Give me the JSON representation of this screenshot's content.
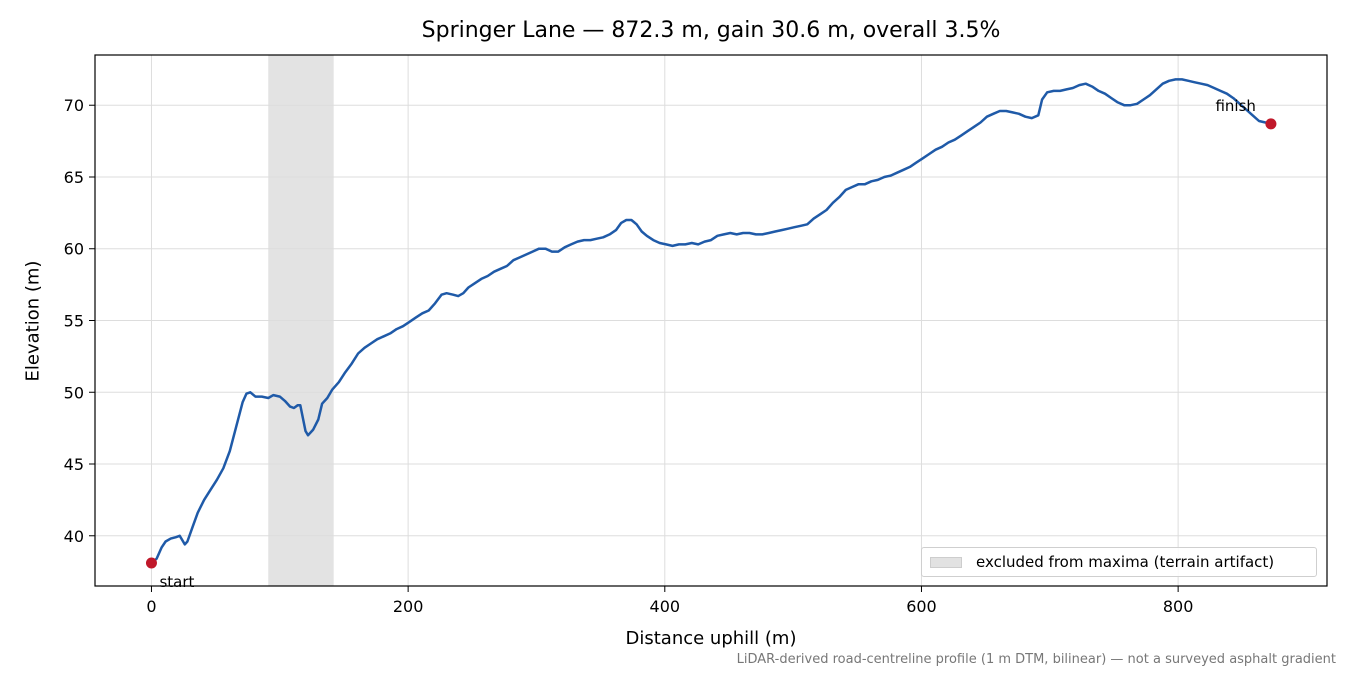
{
  "chart_data": {
    "type": "line",
    "title": "Springer Lane — 872.3 m, gain 30.6 m, overall 3.5%",
    "xlabel": "Distance uphill (m)",
    "ylabel": "Elevation (m)",
    "footnote": "LiDAR-derived road-centreline profile (1 m DTM, bilinear) — not a surveyed asphalt gradient",
    "xlim": [
      -44,
      916
    ],
    "ylim": [
      36.5,
      73.5
    ],
    "xticks": [
      0,
      200,
      400,
      600,
      800
    ],
    "yticks": [
      40,
      45,
      50,
      55,
      60,
      65,
      70
    ],
    "grid": true,
    "legend": {
      "placement": "lower-right",
      "label": "excluded from maxima (terrain artifact)"
    },
    "excluded_region": [
      91,
      142
    ],
    "series": [
      {
        "color": "#1f5aa8",
        "points": [
          [
            0,
            38.1
          ],
          [
            4,
            38.4
          ],
          [
            8,
            39.2
          ],
          [
            11,
            39.6
          ],
          [
            15,
            39.8
          ],
          [
            19,
            39.9
          ],
          [
            22,
            40.0
          ],
          [
            24,
            39.7
          ],
          [
            26,
            39.4
          ],
          [
            28,
            39.6
          ],
          [
            32,
            40.6
          ],
          [
            36,
            41.6
          ],
          [
            41,
            42.5
          ],
          [
            46,
            43.2
          ],
          [
            51,
            43.9
          ],
          [
            56,
            44.7
          ],
          [
            61,
            45.9
          ],
          [
            66,
            47.6
          ],
          [
            71,
            49.3
          ],
          [
            74,
            49.9
          ],
          [
            77,
            50.0
          ],
          [
            81,
            49.7
          ],
          [
            86,
            49.7
          ],
          [
            91,
            49.6
          ],
          [
            95,
            49.8
          ],
          [
            100,
            49.7
          ],
          [
            104,
            49.4
          ],
          [
            108,
            49.0
          ],
          [
            111,
            48.9
          ],
          [
            114,
            49.1
          ],
          [
            116,
            49.1
          ],
          [
            118,
            48.2
          ],
          [
            120,
            47.3
          ],
          [
            122,
            47.0
          ],
          [
            126,
            47.4
          ],
          [
            130,
            48.1
          ],
          [
            133,
            49.2
          ],
          [
            137,
            49.6
          ],
          [
            141,
            50.2
          ],
          [
            146,
            50.7
          ],
          [
            151,
            51.4
          ],
          [
            156,
            52.0
          ],
          [
            161,
            52.7
          ],
          [
            166,
            53.1
          ],
          [
            171,
            53.4
          ],
          [
            176,
            53.7
          ],
          [
            181,
            53.9
          ],
          [
            186,
            54.1
          ],
          [
            191,
            54.4
          ],
          [
            196,
            54.6
          ],
          [
            201,
            54.9
          ],
          [
            206,
            55.2
          ],
          [
            211,
            55.5
          ],
          [
            216,
            55.7
          ],
          [
            221,
            56.2
          ],
          [
            226,
            56.8
          ],
          [
            230,
            56.9
          ],
          [
            235,
            56.8
          ],
          [
            239,
            56.7
          ],
          [
            243,
            56.9
          ],
          [
            247,
            57.3
          ],
          [
            252,
            57.6
          ],
          [
            257,
            57.9
          ],
          [
            262,
            58.1
          ],
          [
            267,
            58.4
          ],
          [
            272,
            58.6
          ],
          [
            277,
            58.8
          ],
          [
            282,
            59.2
          ],
          [
            287,
            59.4
          ],
          [
            292,
            59.6
          ],
          [
            297,
            59.8
          ],
          [
            302,
            60.0
          ],
          [
            307,
            60.0
          ],
          [
            312,
            59.8
          ],
          [
            317,
            59.8
          ],
          [
            322,
            60.1
          ],
          [
            327,
            60.3
          ],
          [
            332,
            60.5
          ],
          [
            337,
            60.6
          ],
          [
            342,
            60.6
          ],
          [
            347,
            60.7
          ],
          [
            352,
            60.8
          ],
          [
            357,
            61.0
          ],
          [
            362,
            61.3
          ],
          [
            366,
            61.8
          ],
          [
            370,
            62.0
          ],
          [
            374,
            62.0
          ],
          [
            378,
            61.7
          ],
          [
            382,
            61.2
          ],
          [
            386,
            60.9
          ],
          [
            391,
            60.6
          ],
          [
            396,
            60.4
          ],
          [
            401,
            60.3
          ],
          [
            406,
            60.2
          ],
          [
            411,
            60.3
          ],
          [
            416,
            60.3
          ],
          [
            421,
            60.4
          ],
          [
            426,
            60.3
          ],
          [
            431,
            60.5
          ],
          [
            436,
            60.6
          ],
          [
            441,
            60.9
          ],
          [
            446,
            61.0
          ],
          [
            451,
            61.1
          ],
          [
            456,
            61.0
          ],
          [
            461,
            61.1
          ],
          [
            466,
            61.1
          ],
          [
            471,
            61.0
          ],
          [
            476,
            61.0
          ],
          [
            481,
            61.1
          ],
          [
            486,
            61.2
          ],
          [
            491,
            61.3
          ],
          [
            496,
            61.4
          ],
          [
            501,
            61.5
          ],
          [
            506,
            61.6
          ],
          [
            511,
            61.7
          ],
          [
            516,
            62.1
          ],
          [
            521,
            62.4
          ],
          [
            526,
            62.7
          ],
          [
            531,
            63.2
          ],
          [
            536,
            63.6
          ],
          [
            541,
            64.1
          ],
          [
            546,
            64.3
          ],
          [
            551,
            64.5
          ],
          [
            556,
            64.5
          ],
          [
            561,
            64.7
          ],
          [
            566,
            64.8
          ],
          [
            571,
            65.0
          ],
          [
            576,
            65.1
          ],
          [
            581,
            65.3
          ],
          [
            586,
            65.5
          ],
          [
            591,
            65.7
          ],
          [
            596,
            66.0
          ],
          [
            601,
            66.3
          ],
          [
            606,
            66.6
          ],
          [
            611,
            66.9
          ],
          [
            616,
            67.1
          ],
          [
            621,
            67.4
          ],
          [
            626,
            67.6
          ],
          [
            631,
            67.9
          ],
          [
            636,
            68.2
          ],
          [
            641,
            68.5
          ],
          [
            646,
            68.8
          ],
          [
            651,
            69.2
          ],
          [
            656,
            69.4
          ],
          [
            661,
            69.6
          ],
          [
            666,
            69.6
          ],
          [
            671,
            69.5
          ],
          [
            676,
            69.4
          ],
          [
            681,
            69.2
          ],
          [
            686,
            69.1
          ],
          [
            691,
            69.3
          ],
          [
            694,
            70.4
          ],
          [
            698,
            70.9
          ],
          [
            703,
            71.0
          ],
          [
            708,
            71.0
          ],
          [
            713,
            71.1
          ],
          [
            718,
            71.2
          ],
          [
            723,
            71.4
          ],
          [
            728,
            71.5
          ],
          [
            733,
            71.3
          ],
          [
            738,
            71.0
          ],
          [
            743,
            70.8
          ],
          [
            748,
            70.5
          ],
          [
            753,
            70.2
          ],
          [
            758,
            70.0
          ],
          [
            763,
            70.0
          ],
          [
            768,
            70.1
          ],
          [
            773,
            70.4
          ],
          [
            778,
            70.7
          ],
          [
            783,
            71.1
          ],
          [
            788,
            71.5
          ],
          [
            793,
            71.7
          ],
          [
            798,
            71.8
          ],
          [
            803,
            71.8
          ],
          [
            808,
            71.7
          ],
          [
            813,
            71.6
          ],
          [
            818,
            71.5
          ],
          [
            823,
            71.4
          ],
          [
            828,
            71.2
          ],
          [
            833,
            71.0
          ],
          [
            838,
            70.8
          ],
          [
            843,
            70.5
          ],
          [
            848,
            70.1
          ],
          [
            853,
            69.7
          ],
          [
            858,
            69.3
          ],
          [
            863,
            68.9
          ],
          [
            868,
            68.8
          ],
          [
            872.3,
            68.7
          ]
        ]
      }
    ],
    "markers": [
      {
        "label": "start",
        "x": 0,
        "y": 38.1,
        "color": "#c0182a"
      },
      {
        "label": "finish",
        "x": 872.3,
        "y": 68.7,
        "color": "#c0182a"
      }
    ]
  }
}
